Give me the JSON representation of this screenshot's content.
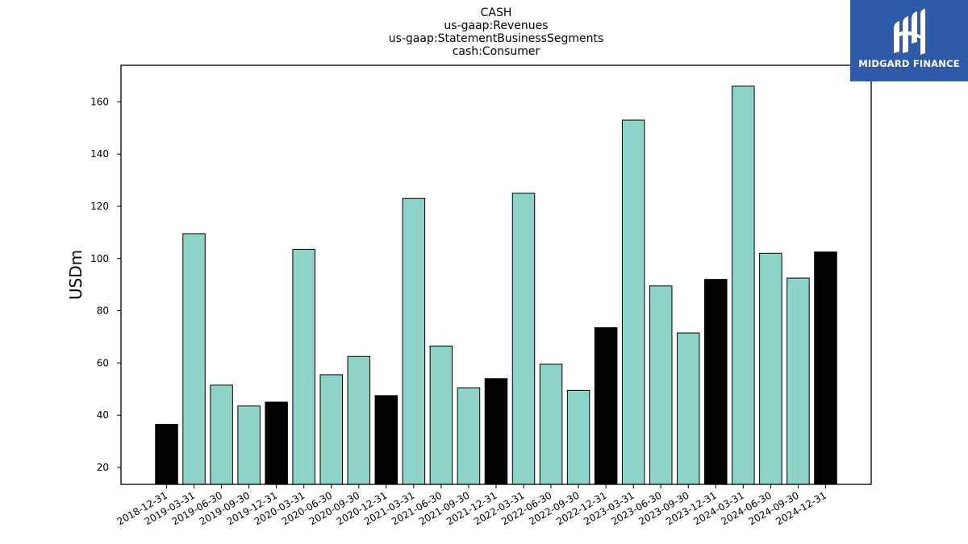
{
  "chart_data": {
    "type": "bar",
    "title_lines": [
      "CASH",
      "us-gaap:Revenues",
      "us-gaap:StatementBusinessSegments",
      "cash:Consumer"
    ],
    "xlabel": "",
    "ylabel": "USDm",
    "ylim": [
      13.5,
      174
    ],
    "yticks": [
      20,
      40,
      60,
      80,
      100,
      120,
      140,
      160
    ],
    "grid": false,
    "categories": [
      "2018-12-31",
      "2019-03-31",
      "2019-06-30",
      "2019-09-30",
      "2019-12-31",
      "2020-03-31",
      "2020-06-30",
      "2020-09-30",
      "2020-12-31",
      "2021-03-31",
      "2021-06-30",
      "2021-09-30",
      "2021-12-31",
      "2022-03-31",
      "2022-06-30",
      "2022-09-30",
      "2022-12-31",
      "2023-03-31",
      "2023-06-30",
      "2023-09-30",
      "2023-12-31",
      "2024-03-31",
      "2024-06-30",
      "2024-09-30",
      "2024-12-31"
    ],
    "values": [
      36.5,
      109.5,
      51.5,
      43.5,
      45,
      103.5,
      55.5,
      62.5,
      47.5,
      123,
      66.5,
      50.5,
      54,
      125,
      59.5,
      49.5,
      73.5,
      153,
      89.5,
      71.5,
      92,
      166,
      102,
      92.5,
      102.5
    ],
    "bar_colors": [
      "#000000",
      "#8dd3c7",
      "#8dd3c7",
      "#8dd3c7",
      "#000000",
      "#8dd3c7",
      "#8dd3c7",
      "#8dd3c7",
      "#000000",
      "#8dd3c7",
      "#8dd3c7",
      "#8dd3c7",
      "#000000",
      "#8dd3c7",
      "#8dd3c7",
      "#8dd3c7",
      "#000000",
      "#8dd3c7",
      "#8dd3c7",
      "#8dd3c7",
      "#000000",
      "#8dd3c7",
      "#8dd3c7",
      "#8dd3c7",
      "#000000"
    ]
  },
  "logo": {
    "text": "MIDGARD FINANCE",
    "icon": "midgard-logo-icon",
    "background": "#2e5aa8"
  }
}
